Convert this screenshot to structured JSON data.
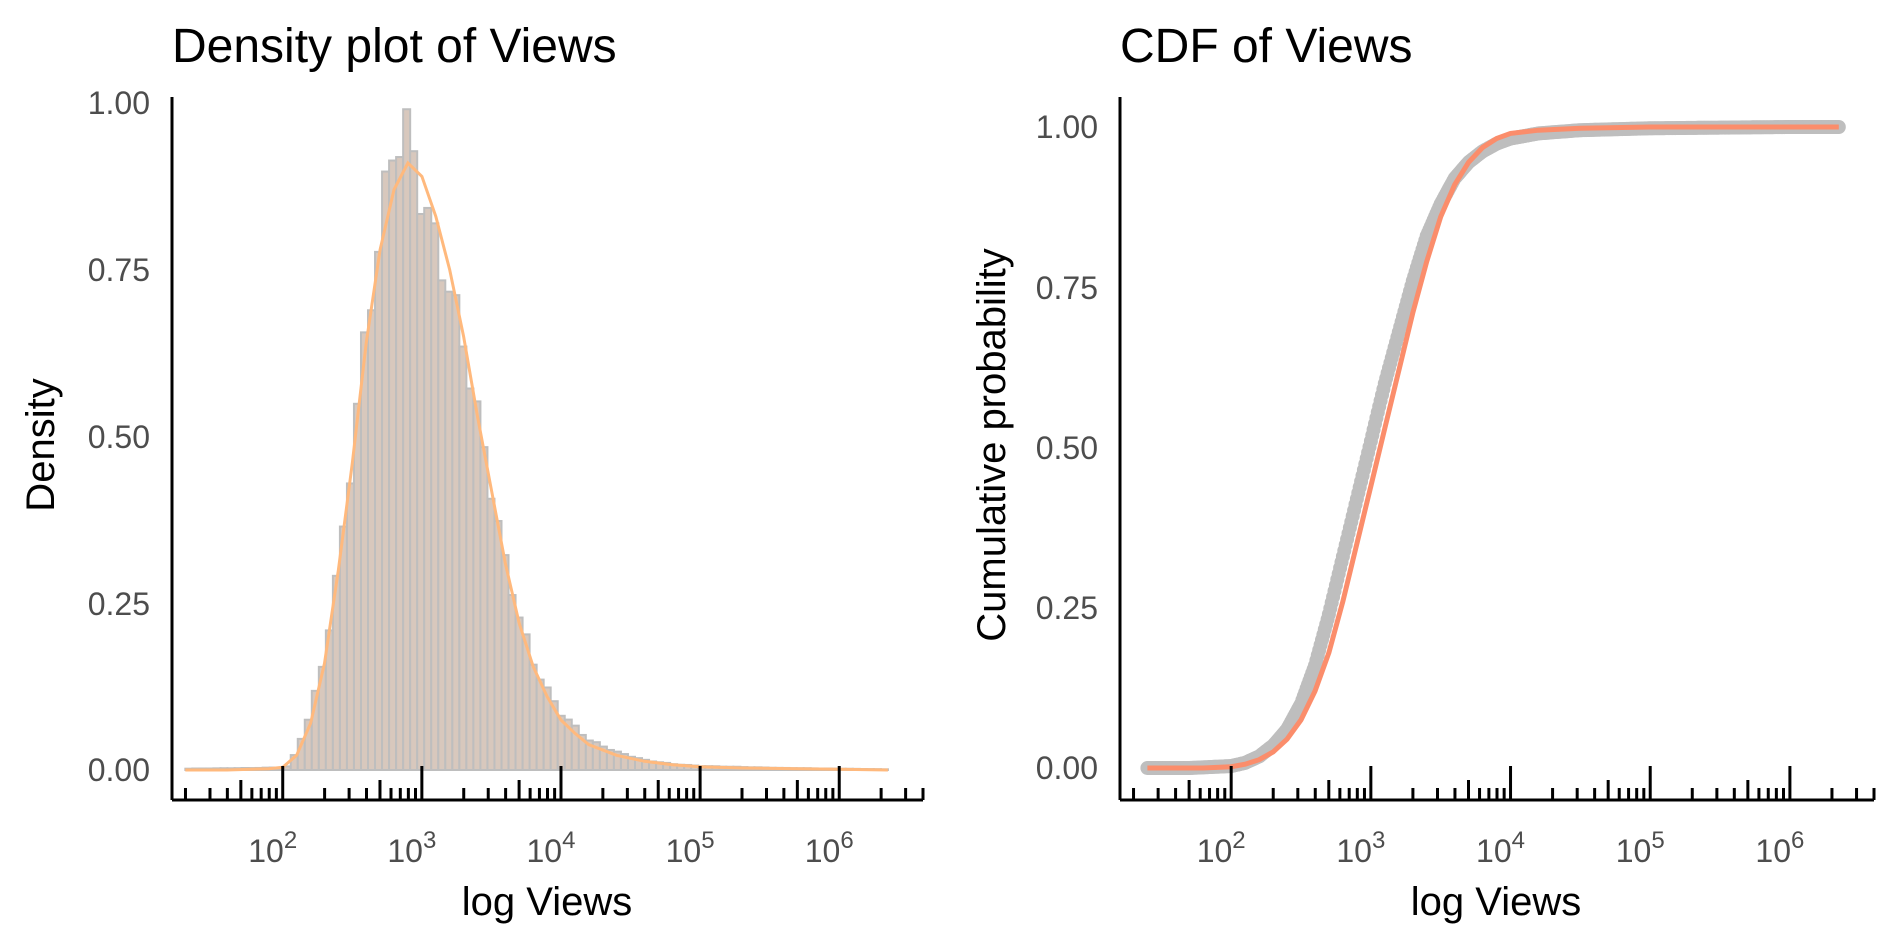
{
  "colors": {
    "hist_fill": "#d8c8bd",
    "hist_outline": "#bebebe",
    "density_line": "#ffb97d",
    "ecdf_points": "#bebebe",
    "fit_line": "#fb8d6b",
    "axis": "#000000",
    "tick_text": "#4d4d4d"
  },
  "chart_data": [
    {
      "type": "histogram",
      "title": "Density plot of Views",
      "xlabel": "log Views",
      "ylabel": "Density",
      "x_scale": "log10",
      "xlim": [
        16,
        4000000
      ],
      "ylim": [
        0,
        1.0
      ],
      "y_ticks": [
        "0.00",
        "0.25",
        "0.50",
        "0.75",
        "1.00"
      ],
      "x_tick_labels": [
        {
          "base": "10",
          "exp": "2"
        },
        {
          "base": "10",
          "exp": "3"
        },
        {
          "base": "10",
          "exp": "4"
        },
        {
          "base": "10",
          "exp": "5"
        },
        {
          "base": "10",
          "exp": "6"
        }
      ],
      "log_minor_ticks": true,
      "grid": false,
      "legend": "none",
      "bins": {
        "from_log10": 1.3,
        "to_log10": 6.35,
        "step_log10": 0.0505
      },
      "histogram_density_points": [
        [
          1.3,
          0.002
        ],
        [
          1.8,
          0.003
        ],
        [
          2.0,
          0.004
        ],
        [
          2.05,
          0.006
        ],
        [
          2.1,
          0.03
        ],
        [
          2.2,
          0.085
        ],
        [
          2.3,
          0.17
        ],
        [
          2.4,
          0.3
        ],
        [
          2.5,
          0.47
        ],
        [
          2.6,
          0.66
        ],
        [
          2.7,
          0.8
        ],
        [
          2.75,
          0.88
        ],
        [
          2.8,
          0.94
        ],
        [
          2.85,
          0.95
        ],
        [
          2.9,
          0.96
        ],
        [
          2.95,
          0.91
        ],
        [
          3.0,
          0.86
        ],
        [
          3.1,
          0.79
        ],
        [
          3.2,
          0.72
        ],
        [
          3.3,
          0.64
        ],
        [
          3.4,
          0.53
        ],
        [
          3.5,
          0.42
        ],
        [
          3.6,
          0.31
        ],
        [
          3.7,
          0.23
        ],
        [
          3.8,
          0.16
        ],
        [
          3.9,
          0.12
        ],
        [
          4.0,
          0.085
        ],
        [
          4.1,
          0.065
        ],
        [
          4.2,
          0.045
        ],
        [
          4.4,
          0.027
        ],
        [
          4.6,
          0.015
        ],
        [
          4.8,
          0.009
        ],
        [
          5.0,
          0.006
        ],
        [
          5.2,
          0.005
        ],
        [
          5.6,
          0.003
        ],
        [
          6.0,
          0.002
        ],
        [
          6.35,
          0.001
        ]
      ],
      "kde_points": [
        [
          1.3,
          0.0
        ],
        [
          1.6,
          0.0
        ],
        [
          1.9,
          0.002
        ],
        [
          2.0,
          0.004
        ],
        [
          2.1,
          0.022
        ],
        [
          2.2,
          0.07
        ],
        [
          2.3,
          0.16
        ],
        [
          2.4,
          0.3
        ],
        [
          2.5,
          0.46
        ],
        [
          2.6,
          0.64
        ],
        [
          2.7,
          0.78
        ],
        [
          2.8,
          0.87
        ],
        [
          2.9,
          0.91
        ],
        [
          3.0,
          0.89
        ],
        [
          3.1,
          0.83
        ],
        [
          3.2,
          0.75
        ],
        [
          3.3,
          0.65
        ],
        [
          3.4,
          0.53
        ],
        [
          3.5,
          0.42
        ],
        [
          3.6,
          0.31
        ],
        [
          3.7,
          0.22
        ],
        [
          3.8,
          0.155
        ],
        [
          3.9,
          0.11
        ],
        [
          4.0,
          0.075
        ],
        [
          4.1,
          0.055
        ],
        [
          4.2,
          0.038
        ],
        [
          4.4,
          0.022
        ],
        [
          4.6,
          0.013
        ],
        [
          4.8,
          0.008
        ],
        [
          5.0,
          0.005
        ],
        [
          5.3,
          0.003
        ],
        [
          5.7,
          0.002
        ],
        [
          6.0,
          0.001
        ],
        [
          6.35,
          0.0
        ]
      ]
    },
    {
      "type": "line",
      "title": "CDF of Views",
      "xlabel": "log Views",
      "ylabel": "Cumulative probability",
      "x_scale": "log10",
      "xlim": [
        16,
        4000000
      ],
      "ylim": [
        -0.05,
        1.05
      ],
      "y_ticks": [
        "0.00",
        "0.25",
        "0.50",
        "0.75",
        "1.00"
      ],
      "x_tick_labels": [
        {
          "base": "10",
          "exp": "2"
        },
        {
          "base": "10",
          "exp": "3"
        },
        {
          "base": "10",
          "exp": "4"
        },
        {
          "base": "10",
          "exp": "5"
        },
        {
          "base": "10",
          "exp": "6"
        }
      ],
      "log_minor_ticks": true,
      "grid": false,
      "legend": "none",
      "empirical_points": [
        [
          1.4,
          0.0
        ],
        [
          1.7,
          0.0
        ],
        [
          1.8,
          0.001
        ],
        [
          1.9,
          0.002
        ],
        [
          2.0,
          0.003
        ],
        [
          2.1,
          0.008
        ],
        [
          2.2,
          0.018
        ],
        [
          2.3,
          0.035
        ],
        [
          2.4,
          0.06
        ],
        [
          2.5,
          0.1
        ],
        [
          2.6,
          0.16
        ],
        [
          2.7,
          0.24
        ],
        [
          2.8,
          0.33
        ],
        [
          2.9,
          0.42
        ],
        [
          3.0,
          0.51
        ],
        [
          3.1,
          0.6
        ],
        [
          3.2,
          0.68
        ],
        [
          3.3,
          0.76
        ],
        [
          3.4,
          0.83
        ],
        [
          3.5,
          0.88
        ],
        [
          3.6,
          0.92
        ],
        [
          3.7,
          0.945
        ],
        [
          3.8,
          0.962
        ],
        [
          3.9,
          0.974
        ],
        [
          4.0,
          0.982
        ],
        [
          4.2,
          0.99
        ],
        [
          4.5,
          0.995
        ],
        [
          5.0,
          0.998
        ],
        [
          5.5,
          0.999
        ],
        [
          6.0,
          1.0
        ],
        [
          6.35,
          1.0
        ]
      ],
      "fit_points": [
        [
          1.4,
          0.0
        ],
        [
          1.8,
          0.0
        ],
        [
          2.0,
          0.002
        ],
        [
          2.1,
          0.006
        ],
        [
          2.2,
          0.013
        ],
        [
          2.3,
          0.025
        ],
        [
          2.4,
          0.045
        ],
        [
          2.5,
          0.075
        ],
        [
          2.6,
          0.12
        ],
        [
          2.7,
          0.18
        ],
        [
          2.8,
          0.26
        ],
        [
          2.9,
          0.35
        ],
        [
          3.0,
          0.44
        ],
        [
          3.1,
          0.53
        ],
        [
          3.2,
          0.62
        ],
        [
          3.3,
          0.71
        ],
        [
          3.4,
          0.79
        ],
        [
          3.5,
          0.86
        ],
        [
          3.6,
          0.91
        ],
        [
          3.7,
          0.945
        ],
        [
          3.8,
          0.968
        ],
        [
          3.9,
          0.982
        ],
        [
          4.0,
          0.99
        ],
        [
          4.2,
          0.995
        ],
        [
          4.5,
          0.998
        ],
        [
          5.0,
          1.0
        ],
        [
          6.35,
          1.0
        ]
      ]
    }
  ]
}
